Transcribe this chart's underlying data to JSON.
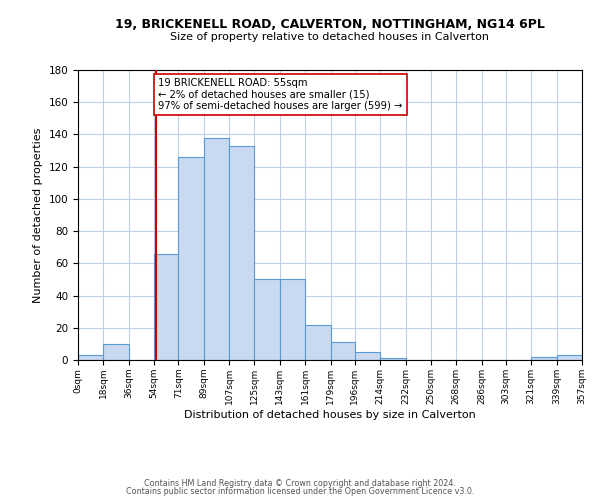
{
  "title": "19, BRICKENELL ROAD, CALVERTON, NOTTINGHAM, NG14 6PL",
  "subtitle": "Size of property relative to detached houses in Calverton",
  "xlabel": "Distribution of detached houses by size in Calverton",
  "ylabel": "Number of detached properties",
  "bar_color": "#c9d9f0",
  "bar_edge_color": "#5b9bd5",
  "annotation_line1": "19 BRICKENELL ROAD: 55sqm",
  "annotation_line2": "← 2% of detached houses are smaller (15)",
  "annotation_line3": "97% of semi-detached houses are larger (599) →",
  "vline_x": 55,
  "vline_color": "#cc0000",
  "bin_edges": [
    0,
    18,
    36,
    54,
    71,
    89,
    107,
    125,
    143,
    161,
    179,
    196,
    214,
    232,
    250,
    268,
    286,
    303,
    321,
    339,
    357
  ],
  "bin_counts": [
    3,
    10,
    0,
    66,
    126,
    138,
    133,
    50,
    50,
    22,
    11,
    5,
    1,
    0,
    0,
    0,
    0,
    0,
    2,
    3
  ],
  "tick_labels": [
    "0sqm",
    "18sqm",
    "36sqm",
    "54sqm",
    "71sqm",
    "89sqm",
    "107sqm",
    "125sqm",
    "143sqm",
    "161sqm",
    "179sqm",
    "196sqm",
    "214sqm",
    "232sqm",
    "250sqm",
    "268sqm",
    "286sqm",
    "303sqm",
    "321sqm",
    "339sqm",
    "357sqm"
  ],
  "ylim": [
    0,
    180
  ],
  "yticks": [
    0,
    20,
    40,
    60,
    80,
    100,
    120,
    140,
    160,
    180
  ],
  "footer_line1": "Contains HM Land Registry data © Crown copyright and database right 2024.",
  "footer_line2": "Contains public sector information licensed under the Open Government Licence v3.0.",
  "background_color": "#ffffff",
  "grid_color": "#c0d0e8"
}
